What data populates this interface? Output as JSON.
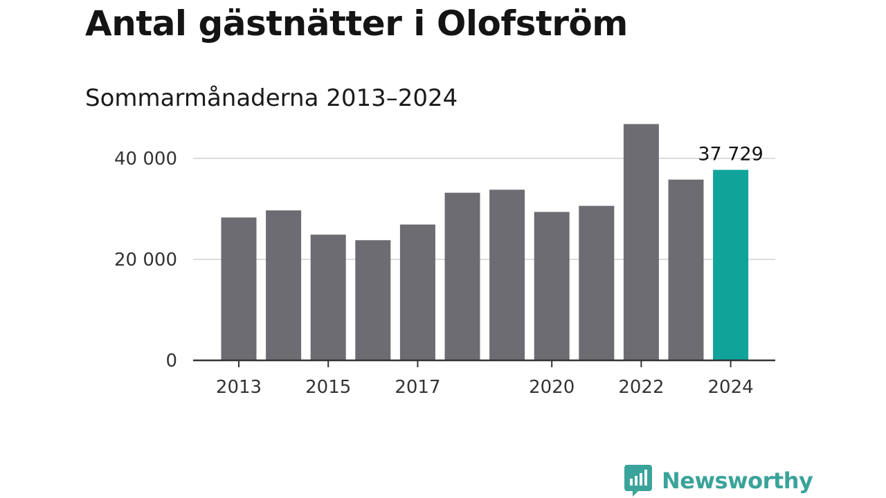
{
  "page": {
    "title": "Antal gästnätter i Olofström",
    "subtitle": "Sommarmånaderna 2013–2024"
  },
  "brand": {
    "name": "Newsworthy",
    "icon": "newsworthy-logo-icon",
    "color": "#3aa39a"
  },
  "chart_data": {
    "type": "bar",
    "categories": [
      "2013",
      "2014",
      "2015",
      "2016",
      "2017",
      "2018",
      "2019",
      "2020",
      "2021",
      "2022",
      "2023",
      "2024"
    ],
    "values": [
      28300,
      29700,
      24900,
      23800,
      26900,
      33200,
      33800,
      29400,
      30600,
      46800,
      35800,
      37729
    ],
    "x_tick_labels": [
      "2013",
      "2015",
      "2017",
      "2020",
      "2022",
      "2024"
    ],
    "y_ticks": [
      0,
      20000,
      40000
    ],
    "y_tick_labels": [
      "0",
      "20 000",
      "40 000"
    ],
    "ylim": [
      0,
      50000
    ],
    "grid": true,
    "bar_color": "#6d6c72",
    "highlight_color": "#0fa399",
    "highlight_category": "2024",
    "annotations": [
      {
        "category": "2024",
        "text": "37 729"
      }
    ]
  }
}
